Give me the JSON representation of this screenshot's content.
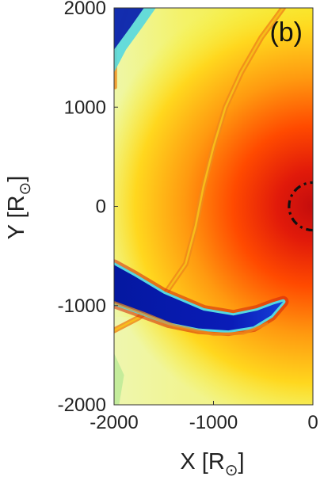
{
  "chart_data": {
    "type": "heatmap",
    "panel_label": "(b)",
    "xlabel": {
      "text": "X [R",
      "sub": "⊙",
      "close": "]"
    },
    "ylabel": {
      "text": "Y [R",
      "sub": "⊙",
      "close": "]"
    },
    "xlim": [
      -2000,
      0
    ],
    "ylim": [
      -2000,
      2000
    ],
    "x_ticks": [
      {
        "value": -2000,
        "label": "-2000"
      },
      {
        "value": -1000,
        "label": "-1000"
      },
      {
        "value": 0,
        "label": "0"
      }
    ],
    "y_ticks": [
      {
        "value": -2000,
        "label": "-2000"
      },
      {
        "value": -1000,
        "label": "-1000"
      },
      {
        "value": 0,
        "label": "0"
      },
      {
        "value": 1000,
        "label": "1000"
      },
      {
        "value": 2000,
        "label": "2000"
      }
    ],
    "grid": false,
    "colormap": "jet",
    "colors": {
      "background": "#f4ef3a",
      "field_light": "#f2f6a0",
      "hot_core": "#c01010",
      "hot_outer": "#ff4400",
      "band_orange": "#f08a1a",
      "band_cyan": "#55d8e0",
      "band_blue": "#0a1aa8",
      "green_region": "#a8e690"
    },
    "dashed_circle": {
      "center": [
        0,
        0
      ],
      "radius": 240,
      "style": "dash-dot",
      "color": "#111111"
    },
    "features": {
      "outer_front_arc": [
        [
          -300,
          2000
        ],
        [
          -520,
          1700
        ],
        [
          -720,
          1350
        ],
        [
          -880,
          1000
        ],
        [
          -1000,
          600
        ],
        [
          -1100,
          200
        ],
        [
          -1180,
          -200
        ],
        [
          -1280,
          -580
        ],
        [
          -1500,
          -900
        ],
        [
          -1750,
          -1120
        ],
        [
          -2000,
          -1250
        ]
      ],
      "inner_front_arc": [
        [
          -1870,
          2000
        ],
        [
          -1990,
          1600
        ],
        [
          -1990,
          1200
        ]
      ],
      "blue_band_upper": [
        [
          -2000,
          -590
        ],
        [
          -1800,
          -700
        ],
        [
          -1500,
          -880
        ],
        [
          -1100,
          -1050
        ],
        [
          -800,
          -1100
        ],
        [
          -560,
          -1050
        ],
        [
          -400,
          -990
        ],
        [
          -300,
          -960
        ]
      ],
      "blue_band_lower": [
        [
          -300,
          -960
        ],
        [
          -420,
          -1100
        ],
        [
          -600,
          -1210
        ],
        [
          -850,
          -1250
        ],
        [
          -1150,
          -1230
        ],
        [
          -1450,
          -1170
        ],
        [
          -1750,
          -1060
        ],
        [
          -2000,
          -970
        ]
      ],
      "blue_corner_top_left": [
        [
          -2000,
          2000
        ],
        [
          -1580,
          2000
        ],
        [
          -1720,
          1800
        ],
        [
          -1880,
          1580
        ],
        [
          -2000,
          1350
        ]
      ]
    }
  }
}
